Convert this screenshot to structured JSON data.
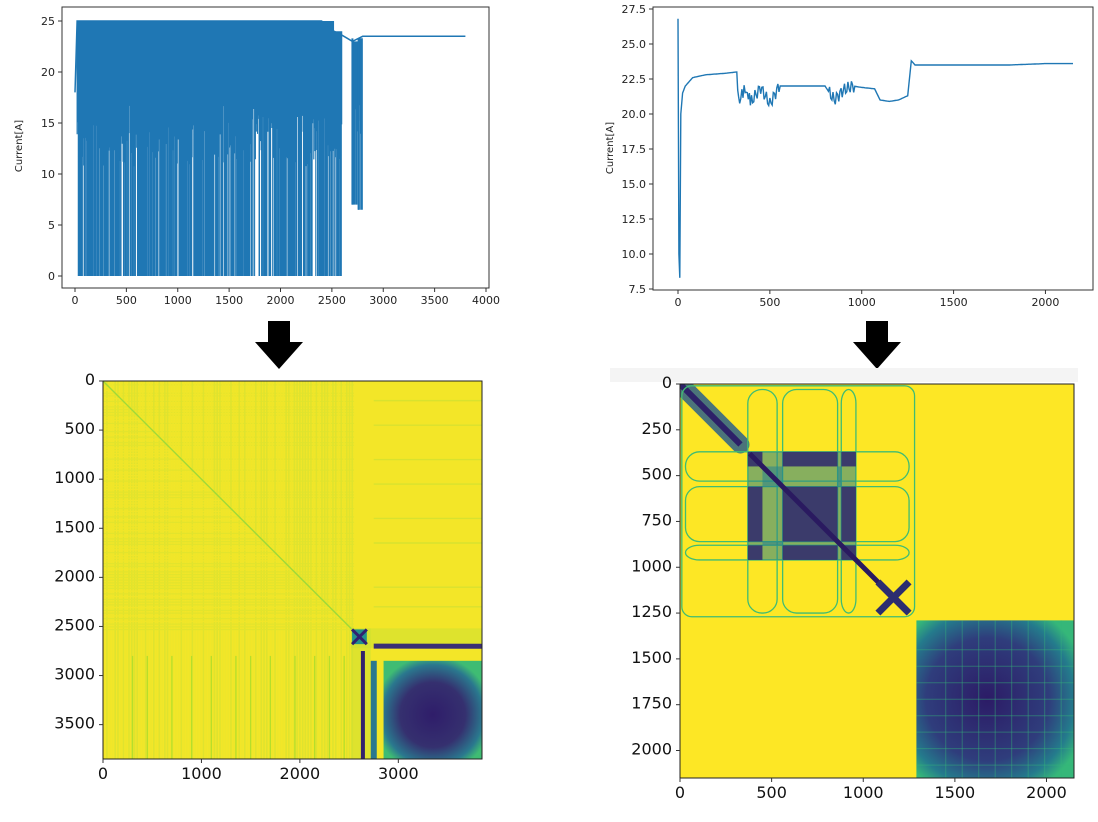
{
  "chart_data": [
    {
      "type": "line",
      "ylabel": "Current[A]",
      "xlim": [
        0,
        4000
      ],
      "ylim": [
        0,
        25
      ],
      "x_ticks": [
        "0",
        "500",
        "1000",
        "1500",
        "2000",
        "2500",
        "3000",
        "3500",
        "4000"
      ],
      "y_ticks": [
        "0",
        "5",
        "10",
        "15",
        "20",
        "25"
      ],
      "color": "#1f77b4",
      "series": [
        {
          "x": [
            0,
            20,
            100,
            200,
            400,
            600,
            800,
            1000,
            1200,
            1400,
            1600,
            1800,
            1940,
            2000,
            2200,
            2400,
            2520,
            2600,
            2650,
            2700,
            2760,
            2800,
            3000,
            3200,
            3400,
            3600,
            3800
          ],
          "y": [
            18,
            25,
            25,
            25,
            25,
            25,
            25,
            25,
            25,
            25,
            25,
            25,
            25,
            25,
            25,
            25,
            24,
            23.6,
            23.3,
            23,
            23.3,
            23.5,
            23.5,
            23.5,
            23.5,
            23.5,
            23.5
          ],
          "y_min_envelope": [
            18,
            0,
            0,
            0,
            0,
            0,
            0,
            0,
            0,
            0,
            0,
            0,
            0,
            0,
            0,
            0,
            0,
            23,
            23,
            7,
            6.5,
            23,
            23.5,
            23.5,
            23.5,
            23.5,
            23.5
          ]
        }
      ]
    },
    {
      "type": "line",
      "ylabel": "Current[A]",
      "xlim": [
        0,
        2150
      ],
      "ylim": [
        7.5,
        27.5
      ],
      "x_ticks": [
        "0",
        "500",
        "1000",
        "1500",
        "2000"
      ],
      "y_ticks": [
        "7.5",
        "10.0",
        "12.5",
        "15.0",
        "17.5",
        "20.0",
        "22.5",
        "25.0",
        "27.5"
      ],
      "color": "#1f77b4",
      "series": [
        {
          "x": [
            0,
            5,
            10,
            15,
            25,
            40,
            80,
            150,
            250,
            320,
            330,
            360,
            400,
            450,
            500,
            550,
            600,
            700,
            800,
            850,
            900,
            950,
            1000,
            1070,
            1100,
            1150,
            1200,
            1250,
            1270,
            1290,
            1400,
            1600,
            1800,
            2000,
            2150
          ],
          "y": [
            26.8,
            10,
            8.3,
            20,
            21.5,
            22,
            22.6,
            22.8,
            22.9,
            23.0,
            20.8,
            21.8,
            20.9,
            21.9,
            20.7,
            22.0,
            22.0,
            22.0,
            22.0,
            21.0,
            21.7,
            22.0,
            21.9,
            21.8,
            21.0,
            20.9,
            21.0,
            21.3,
            23.8,
            23.5,
            23.5,
            23.5,
            23.5,
            23.6,
            23.6
          ]
        }
      ]
    },
    {
      "type": "heatmap",
      "extent": [
        0,
        3850
      ],
      "x_ticks": [
        "0",
        "1000",
        "2000",
        "3000"
      ],
      "y_ticks": [
        "0",
        "500",
        "1000",
        "1500",
        "2000",
        "2500",
        "3000",
        "3500"
      ],
      "colormap": "viridis",
      "colors": {
        "high": "#fde725",
        "mid": "#21918c",
        "low": "#30206f"
      },
      "blocks": [
        {
          "x0": 2530,
          "x1": 2680,
          "y0": 2530,
          "y1": 2680,
          "intensity": "low"
        },
        {
          "x0": 2850,
          "x1": 3850,
          "y0": 2850,
          "y1": 3850,
          "intensity": "low"
        }
      ]
    },
    {
      "type": "heatmap",
      "extent": [
        0,
        2150
      ],
      "x_ticks": [
        "0",
        "500",
        "1000",
        "1500",
        "2000"
      ],
      "y_ticks": [
        "0",
        "250",
        "500",
        "750",
        "1000",
        "1250",
        "1500",
        "1750",
        "2000"
      ],
      "colormap": "viridis",
      "colors": {
        "high": "#fde725",
        "mid": "#21918c",
        "low": "#30206f"
      },
      "blocks": [
        {
          "x0": 0,
          "x1": 330,
          "y0": 0,
          "y1": 330,
          "intensity": "diagonal"
        },
        {
          "x0": 370,
          "x1": 960,
          "y0": 370,
          "y1": 960,
          "intensity": "low"
        },
        {
          "x0": 1080,
          "x1": 1250,
          "y0": 1080,
          "y1": 1250,
          "intensity": "low"
        },
        {
          "x0": 1290,
          "x1": 2150,
          "y0": 1290,
          "y1": 2150,
          "intensity": "low"
        }
      ]
    }
  ]
}
